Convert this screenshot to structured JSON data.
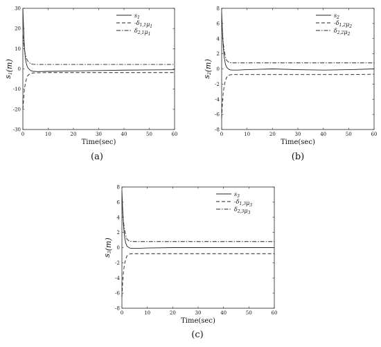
{
  "chart_data": [
    {
      "type": "line",
      "caption": "(a)",
      "xlabel": "Time(sec)",
      "ylabel": "s1(m)",
      "xlim": [
        0,
        60
      ],
      "ylim": [
        -30,
        30
      ],
      "xticks": [
        "0",
        "10",
        "20",
        "30",
        "40",
        "50",
        "60"
      ],
      "yticks": [
        "-30",
        "-20",
        "-10",
        "0",
        "10",
        "20",
        "30"
      ],
      "legend_position": "top-right",
      "series": [
        {
          "name": "s1",
          "style": "solid",
          "x": [
            0,
            0.3,
            0.6,
            1,
            1.5,
            2,
            3,
            4,
            6,
            10,
            20,
            30,
            40,
            50,
            60
          ],
          "y": [
            30,
            20,
            11,
            5,
            2,
            0.5,
            -0.8,
            -1.2,
            -1.3,
            -1.2,
            -1.0,
            -0.8,
            -0.6,
            -0.5,
            -0.4
          ]
        },
        {
          "name": "-δ1,1μ1",
          "style": "dashed",
          "x": [
            0,
            0.3,
            0.6,
            1,
            1.5,
            2,
            3,
            4,
            6,
            10,
            20,
            30,
            40,
            50,
            60
          ],
          "y": [
            -20,
            -15,
            -10,
            -7,
            -4.5,
            -3.2,
            -2.3,
            -2.0,
            -1.9,
            -1.8,
            -1.8,
            -1.8,
            -1.8,
            -1.8,
            -1.8
          ]
        },
        {
          "name": "δ2,1μ1",
          "style": "dashdot",
          "x": [
            0,
            0.3,
            0.6,
            1,
            1.5,
            2,
            3,
            4,
            6,
            10,
            20,
            30,
            40,
            50,
            60
          ],
          "y": [
            17,
            13,
            10,
            7,
            5,
            3.8,
            2.6,
            2.3,
            2.2,
            2.2,
            2.2,
            2.2,
            2.2,
            2.2,
            2.2
          ]
        }
      ]
    },
    {
      "type": "line",
      "caption": "(b)",
      "xlabel": "Time(sec)",
      "ylabel": "s2(m)",
      "xlim": [
        0,
        60
      ],
      "ylim": [
        -8,
        8
      ],
      "xticks": [
        "0",
        "10",
        "20",
        "30",
        "40",
        "50",
        "60"
      ],
      "yticks": [
        "-8",
        "-6",
        "-4",
        "-2",
        "0",
        "2",
        "4",
        "6",
        "8"
      ],
      "legend_position": "top-right",
      "series": [
        {
          "name": "s2",
          "style": "solid",
          "x": [
            0,
            0.3,
            0.6,
            1,
            1.5,
            2,
            3,
            4,
            6,
            10,
            20,
            30,
            40,
            50,
            60
          ],
          "y": [
            7.5,
            5,
            3,
            1.5,
            0.6,
            0.2,
            -0.1,
            -0.15,
            -0.15,
            -0.1,
            0,
            -0.1,
            -0.15,
            -0.1,
            0
          ]
        },
        {
          "name": "-δ1,2μ2",
          "style": "dashed",
          "x": [
            0,
            0.3,
            0.6,
            1,
            1.5,
            2,
            3,
            4,
            6,
            10,
            20,
            30,
            40,
            50,
            60
          ],
          "y": [
            -6.5,
            -4.5,
            -3.2,
            -2.2,
            -1.5,
            -1.1,
            -0.8,
            -0.75,
            -0.75,
            -0.75,
            -0.75,
            -0.75,
            -0.75,
            -0.75,
            -0.7
          ]
        },
        {
          "name": "δ2,2μ2",
          "style": "dashdot",
          "x": [
            0,
            0.3,
            0.6,
            1,
            1.5,
            2,
            3,
            4,
            6,
            10,
            20,
            30,
            40,
            50,
            60
          ],
          "y": [
            6.5,
            4.8,
            3.5,
            2.4,
            1.6,
            1.1,
            0.85,
            0.8,
            0.8,
            0.8,
            0.8,
            0.8,
            0.8,
            0.8,
            0.8
          ]
        }
      ]
    },
    {
      "type": "line",
      "caption": "(c)",
      "xlabel": "Time(sec)",
      "ylabel": "s3(m)",
      "xlim": [
        0,
        60
      ],
      "ylim": [
        -8,
        8
      ],
      "xticks": [
        "0",
        "10",
        "20",
        "30",
        "40",
        "50",
        "60"
      ],
      "yticks": [
        "-8",
        "-6",
        "-4",
        "-2",
        "0",
        "2",
        "4",
        "6",
        "8"
      ],
      "legend_position": "top-right",
      "series": [
        {
          "name": "s3",
          "style": "solid",
          "x": [
            0,
            0.3,
            0.6,
            1,
            1.5,
            2,
            3,
            4,
            6,
            10,
            20,
            30,
            40,
            50,
            60
          ],
          "y": [
            7.5,
            5,
            3,
            1.5,
            0.6,
            0.2,
            -0.05,
            -0.1,
            -0.1,
            -0.05,
            0,
            0,
            0,
            0,
            0
          ]
        },
        {
          "name": "-δ1,3μ3",
          "style": "dashed",
          "x": [
            0,
            0.3,
            0.6,
            1,
            1.5,
            2,
            3,
            4,
            6,
            10,
            20,
            30,
            40,
            50,
            60
          ],
          "y": [
            -6.5,
            -4.5,
            -3.2,
            -2.2,
            -1.5,
            -1.1,
            -0.85,
            -0.8,
            -0.8,
            -0.8,
            -0.8,
            -0.8,
            -0.8,
            -0.8,
            -0.8
          ]
        },
        {
          "name": "δ2,3μ3",
          "style": "dashdot",
          "x": [
            0,
            0.3,
            0.6,
            1,
            1.5,
            2,
            3,
            4,
            6,
            10,
            20,
            30,
            40,
            50,
            60
          ],
          "y": [
            6.5,
            4.8,
            3.5,
            2.4,
            1.6,
            1.1,
            0.85,
            0.8,
            0.8,
            0.8,
            0.8,
            0.8,
            0.8,
            0.8,
            0.8
          ]
        }
      ]
    }
  ]
}
